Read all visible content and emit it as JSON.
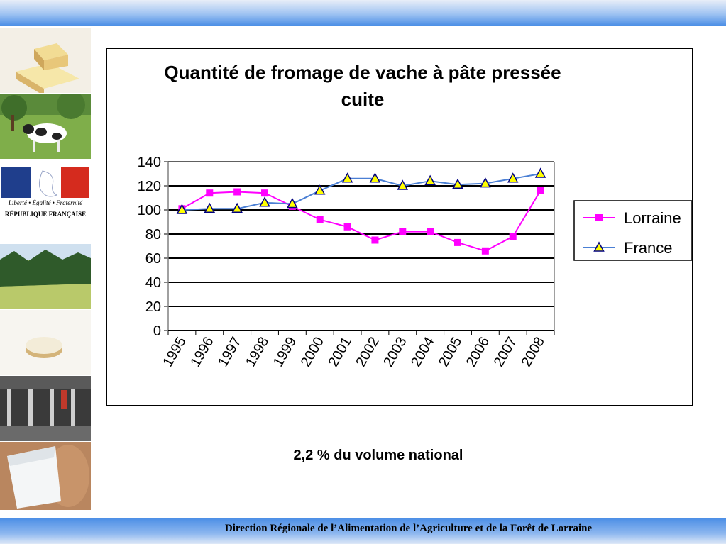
{
  "chart_data": {
    "type": "line",
    "title_line1": "Quantité de fromage de vache à pâte pressée",
    "title_line2": "cuite",
    "categories": [
      "1995",
      "1996",
      "1997",
      "1998",
      "1999",
      "2000",
      "2001",
      "2002",
      "2003",
      "2004",
      "2005",
      "2006",
      "2007",
      "2008"
    ],
    "series": [
      {
        "name": "Lorraine",
        "color": "#ff00ff",
        "marker": "square",
        "values": [
          101,
          114,
          115,
          114,
          103,
          92,
          86,
          75,
          82,
          82,
          73,
          66,
          78,
          116
        ]
      },
      {
        "name": "France",
        "color": "#4a7fd4",
        "marker": "triangle",
        "values": [
          100,
          101,
          101,
          106,
          105,
          116,
          126,
          126,
          120,
          124,
          121,
          122,
          126,
          130
        ]
      }
    ],
    "ylim": [
      0,
      140
    ],
    "yticks": [
      0,
      20,
      40,
      60,
      80,
      100,
      120,
      140
    ],
    "grid": true,
    "legend_position": "right"
  },
  "caption": "2,2 % du volume national",
  "footer": "Direction Régionale de l’Alimentation de l’Agriculture et de la Forêt de Lorraine",
  "sidebar": {
    "gov_motto": "Liberté • Égalité • Fraternité",
    "gov_name": "RÉPUBLIQUE FRANÇAISE"
  }
}
